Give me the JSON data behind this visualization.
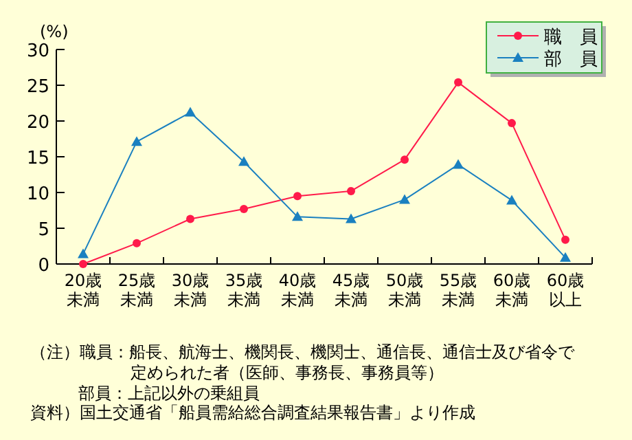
{
  "chart_data": {
    "type": "line",
    "ylabel": "(%)",
    "categories": [
      "20歳未満",
      "25歳未満",
      "30歳未満",
      "35歳未満",
      "40歳未満",
      "45歳未満",
      "50歳未満",
      "55歳未満",
      "60歳未満",
      "60歳以上"
    ],
    "series": [
      {
        "name": "職　員",
        "color": "#ff1a4a",
        "marker": "circle",
        "values": [
          0,
          2.9,
          6.3,
          7.7,
          9.5,
          10.2,
          14.6,
          25.4,
          19.7,
          3.4
        ]
      },
      {
        "name": "部　員",
        "color": "#1a80c0",
        "marker": "triangle",
        "values": [
          1.4,
          17.1,
          21.2,
          14.3,
          6.6,
          6.3,
          9.0,
          13.9,
          8.9,
          0.9
        ]
      }
    ],
    "ylim": [
      0,
      30
    ],
    "yticks": [
      0,
      5,
      10,
      15,
      20,
      25,
      30
    ],
    "grid": false,
    "legend": "top right",
    "annotations": [
      "（注）職員：船長、航海士、機関長、機関士、通信長、通信士及び省令で定められた者（医師、事務長、事務員等）",
      "部員：上記以外の乗組員",
      "資料）国土交通省「船員需給総合調査結果報告書」より作成"
    ]
  }
}
